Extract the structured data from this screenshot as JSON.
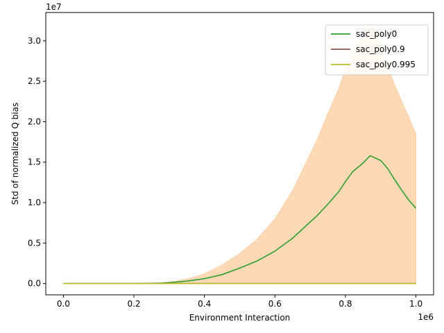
{
  "chart_data": {
    "type": "line",
    "title": "",
    "xlabel": "Environment Interaction",
    "ylabel": "Std of normalized Q bias",
    "x_offset_label": "1e6",
    "y_offset_label": "1e7",
    "xlim": [
      -0.05,
      1.05
    ],
    "ylim": [
      -1.4,
      33.5
    ],
    "x_ticks": [
      0.0,
      0.2,
      0.4,
      0.6,
      0.8,
      1.0
    ],
    "x_tick_labels": [
      "0.0",
      "0.2",
      "0.4",
      "0.6",
      "0.8",
      "1.0"
    ],
    "y_ticks": [
      0.0,
      5.0,
      10.0,
      15.0,
      20.0,
      25.0,
      30.0
    ],
    "y_tick_labels": [
      "0.0",
      "0.5",
      "1.0",
      "1.5",
      "2.0",
      "2.5",
      "3.0"
    ],
    "grid": false,
    "legend_position": "top-right",
    "series": [
      {
        "name": "sac_poly0",
        "color": "#2ca02c",
        "x": [
          0.0,
          0.05,
          0.1,
          0.15,
          0.2,
          0.25,
          0.28,
          0.3,
          0.35,
          0.4,
          0.45,
          0.5,
          0.55,
          0.6,
          0.65,
          0.7,
          0.72,
          0.75,
          0.78,
          0.8,
          0.82,
          0.85,
          0.87,
          0.88,
          0.9,
          0.92,
          0.94,
          0.96,
          0.98,
          1.0
        ],
        "y": [
          0.0,
          0.0,
          0.0,
          0.0,
          0.0,
          0.02,
          0.05,
          0.1,
          0.3,
          0.6,
          1.1,
          1.9,
          2.8,
          4.0,
          5.6,
          7.6,
          8.4,
          9.8,
          11.3,
          12.6,
          13.8,
          14.9,
          15.8,
          15.6,
          15.2,
          14.2,
          12.8,
          11.5,
          10.3,
          9.3
        ],
        "band_upper": [
          0.0,
          0.0,
          0.0,
          0.0,
          0.0,
          0.05,
          0.1,
          0.2,
          0.55,
          1.2,
          2.3,
          3.7,
          5.5,
          8.0,
          11.5,
          16.0,
          17.8,
          21.0,
          24.0,
          26.5,
          28.2,
          30.5,
          32.0,
          31.5,
          29.0,
          26.8,
          24.5,
          22.5,
          20.5,
          18.5
        ],
        "band_lower": [
          0.0,
          0.0,
          0.0,
          0.0,
          0.0,
          0.0,
          0.0,
          0.0,
          0.0,
          0.0,
          0.0,
          0.0,
          0.0,
          0.0,
          0.0,
          0.0,
          0.0,
          0.0,
          0.0,
          0.0,
          0.0,
          0.0,
          0.0,
          0.0,
          0.0,
          0.0,
          0.0,
          0.0,
          0.0,
          0.0
        ],
        "band_color": "#fdd9b5"
      },
      {
        "name": "sac_poly0.9",
        "color": "#8c564b",
        "x": [
          0.0,
          1.0
        ],
        "y": [
          0.0,
          0.0
        ]
      },
      {
        "name": "sac_poly0.995",
        "color": "#bcbd22",
        "x": [
          0.0,
          1.0
        ],
        "y": [
          0.0,
          0.0
        ]
      }
    ]
  }
}
